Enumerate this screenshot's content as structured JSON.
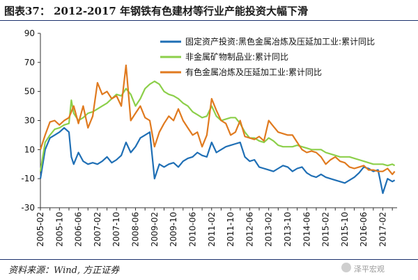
{
  "title": "图表37：  2012-2017 年钢铁有色建材等行业产能投资大幅下滑",
  "source": "资料来源：Wind, 方正证券",
  "watermark": "泽平宏观",
  "colors": {
    "rule": "#1a2f6b",
    "axis": "#333333",
    "series1": "#1f6fb5",
    "series2": "#8ccf4a",
    "series3": "#e07a1f"
  },
  "chart_data": {
    "type": "line",
    "ylim": [
      -30,
      90
    ],
    "yticks": [
      90,
      70,
      50,
      30,
      10,
      -10,
      -30
    ],
    "xlabels": [
      "2005-02",
      "2005-10",
      "2006-06",
      "2007-02",
      "2007-10",
      "2008-06",
      "2009-02",
      "2009-10",
      "2010-06",
      "2011-02",
      "2011-10",
      "2012-06",
      "2013-02",
      "2013-10",
      "2014-06",
      "2015-02",
      "2015-10",
      "2016-06",
      "2017-02"
    ],
    "legend_position": "top-right",
    "grid": false,
    "series": [
      {
        "name": "固定资产投资:黑色金属冶炼及压延加工业:累计同比",
        "color": "#1f6fb5",
        "points": [
          [
            "2005-02",
            -10
          ],
          [
            "2005-04",
            10
          ],
          [
            "2005-06",
            18
          ],
          [
            "2005-08",
            20
          ],
          [
            "2005-10",
            22
          ],
          [
            "2005-12",
            25
          ],
          [
            "2006-02",
            22
          ],
          [
            "2006-03",
            5
          ],
          [
            "2006-04",
            0
          ],
          [
            "2006-06",
            8
          ],
          [
            "2006-08",
            2
          ],
          [
            "2006-10",
            0
          ],
          [
            "2006-12",
            1
          ],
          [
            "2007-02",
            0
          ],
          [
            "2007-04",
            2
          ],
          [
            "2007-06",
            5
          ],
          [
            "2007-08",
            1
          ],
          [
            "2007-10",
            3
          ],
          [
            "2007-12",
            6
          ],
          [
            "2008-02",
            15
          ],
          [
            "2008-04",
            8
          ],
          [
            "2008-06",
            12
          ],
          [
            "2008-08",
            18
          ],
          [
            "2008-10",
            20
          ],
          [
            "2008-12",
            22
          ],
          [
            "2009-02",
            -10
          ],
          [
            "2009-04",
            0
          ],
          [
            "2009-06",
            -2
          ],
          [
            "2009-08",
            0
          ],
          [
            "2009-10",
            1
          ],
          [
            "2009-12",
            -2
          ],
          [
            "2010-02",
            2
          ],
          [
            "2010-04",
            4
          ],
          [
            "2010-06",
            5
          ],
          [
            "2010-08",
            8
          ],
          [
            "2010-10",
            6
          ],
          [
            "2010-12",
            5
          ],
          [
            "2011-02",
            15
          ],
          [
            "2011-04",
            8
          ],
          [
            "2011-06",
            10
          ],
          [
            "2011-08",
            12
          ],
          [
            "2011-10",
            13
          ],
          [
            "2011-12",
            14
          ],
          [
            "2012-02",
            15
          ],
          [
            "2012-04",
            5
          ],
          [
            "2012-06",
            2
          ],
          [
            "2012-08",
            3
          ],
          [
            "2012-10",
            -2
          ],
          [
            "2012-12",
            -3
          ],
          [
            "2013-02",
            -4
          ],
          [
            "2013-04",
            -5
          ],
          [
            "2013-06",
            -3
          ],
          [
            "2013-08",
            -1
          ],
          [
            "2013-10",
            -2
          ],
          [
            "2013-12",
            -5
          ],
          [
            "2014-02",
            -3
          ],
          [
            "2014-04",
            -2
          ],
          [
            "2014-06",
            -6
          ],
          [
            "2014-08",
            -8
          ],
          [
            "2014-10",
            -9
          ],
          [
            "2014-12",
            -7
          ],
          [
            "2015-02",
            -9
          ],
          [
            "2015-04",
            -10
          ],
          [
            "2015-06",
            -11
          ],
          [
            "2015-08",
            -12
          ],
          [
            "2015-10",
            -13
          ],
          [
            "2015-12",
            -11
          ],
          [
            "2016-02",
            -9
          ],
          [
            "2016-04",
            -6
          ],
          [
            "2016-06",
            -2
          ],
          [
            "2016-08",
            -3
          ],
          [
            "2016-10",
            -5
          ],
          [
            "2016-12",
            -4
          ],
          [
            "2017-02",
            -20
          ],
          [
            "2017-04",
            -10
          ],
          [
            "2017-06",
            -12
          ],
          [
            "2017-07",
            -11
          ]
        ]
      },
      {
        "name": "非金属矿物制品业:累计同比",
        "color": "#8ccf4a",
        "points": [
          [
            "2005-02",
            -5
          ],
          [
            "2005-04",
            15
          ],
          [
            "2005-06",
            20
          ],
          [
            "2005-08",
            24
          ],
          [
            "2005-10",
            25
          ],
          [
            "2005-12",
            27
          ],
          [
            "2006-02",
            28
          ],
          [
            "2006-03",
            44
          ],
          [
            "2006-04",
            35
          ],
          [
            "2006-06",
            30
          ],
          [
            "2006-08",
            32
          ],
          [
            "2006-10",
            35
          ],
          [
            "2006-12",
            36
          ],
          [
            "2007-02",
            38
          ],
          [
            "2007-04",
            40
          ],
          [
            "2007-06",
            42
          ],
          [
            "2007-08",
            45
          ],
          [
            "2007-10",
            48
          ],
          [
            "2007-12",
            47
          ],
          [
            "2008-02",
            52
          ],
          [
            "2008-04",
            48
          ],
          [
            "2008-06",
            40
          ],
          [
            "2008-08",
            45
          ],
          [
            "2008-10",
            52
          ],
          [
            "2008-12",
            55
          ],
          [
            "2009-02",
            57
          ],
          [
            "2009-04",
            55
          ],
          [
            "2009-06",
            50
          ],
          [
            "2009-08",
            48
          ],
          [
            "2009-10",
            47
          ],
          [
            "2009-12",
            45
          ],
          [
            "2010-02",
            42
          ],
          [
            "2010-04",
            40
          ],
          [
            "2010-06",
            36
          ],
          [
            "2010-08",
            34
          ],
          [
            "2010-10",
            32
          ],
          [
            "2010-12",
            33
          ],
          [
            "2011-02",
            40
          ],
          [
            "2011-04",
            33
          ],
          [
            "2011-06",
            30
          ],
          [
            "2011-08",
            31
          ],
          [
            "2011-10",
            32
          ],
          [
            "2011-12",
            32
          ],
          [
            "2012-02",
            28
          ],
          [
            "2012-04",
            22
          ],
          [
            "2012-06",
            18
          ],
          [
            "2012-08",
            18
          ],
          [
            "2012-10",
            16
          ],
          [
            "2012-12",
            15
          ],
          [
            "2013-02",
            18
          ],
          [
            "2013-04",
            16
          ],
          [
            "2013-06",
            13
          ],
          [
            "2013-08",
            12
          ],
          [
            "2013-10",
            12
          ],
          [
            "2013-12",
            12
          ],
          [
            "2014-02",
            13
          ],
          [
            "2014-04",
            12
          ],
          [
            "2014-06",
            11
          ],
          [
            "2014-08",
            10
          ],
          [
            "2014-10",
            10
          ],
          [
            "2014-12",
            10
          ],
          [
            "2015-02",
            8
          ],
          [
            "2015-04",
            7
          ],
          [
            "2015-06",
            6
          ],
          [
            "2015-08",
            5
          ],
          [
            "2015-10",
            5
          ],
          [
            "2015-12",
            5
          ],
          [
            "2016-02",
            4
          ],
          [
            "2016-04",
            3
          ],
          [
            "2016-06",
            2
          ],
          [
            "2016-08",
            1
          ],
          [
            "2016-10",
            0
          ],
          [
            "2016-12",
            0
          ],
          [
            "2017-02",
            0
          ],
          [
            "2017-04",
            -1
          ],
          [
            "2017-06",
            0
          ],
          [
            "2017-07",
            -1
          ]
        ]
      },
      {
        "name": "有色金属冶炼及压延加工业:累计同比",
        "color": "#e07a1f",
        "points": [
          [
            "2005-02",
            10
          ],
          [
            "2005-04",
            20
          ],
          [
            "2005-06",
            29
          ],
          [
            "2005-08",
            30
          ],
          [
            "2005-10",
            27
          ],
          [
            "2005-12",
            30
          ],
          [
            "2006-02",
            32
          ],
          [
            "2006-03",
            36
          ],
          [
            "2006-04",
            40
          ],
          [
            "2006-06",
            28
          ],
          [
            "2006-08",
            40
          ],
          [
            "2006-10",
            25
          ],
          [
            "2006-12",
            33
          ],
          [
            "2007-02",
            56
          ],
          [
            "2007-04",
            48
          ],
          [
            "2007-06",
            50
          ],
          [
            "2007-08",
            45
          ],
          [
            "2007-10",
            47
          ],
          [
            "2007-12",
            40
          ],
          [
            "2008-02",
            68
          ],
          [
            "2008-04",
            30
          ],
          [
            "2008-06",
            35
          ],
          [
            "2008-08",
            40
          ],
          [
            "2008-10",
            32
          ],
          [
            "2008-12",
            30
          ],
          [
            "2009-02",
            12
          ],
          [
            "2009-04",
            22
          ],
          [
            "2009-06",
            28
          ],
          [
            "2009-08",
            33
          ],
          [
            "2009-10",
            30
          ],
          [
            "2009-12",
            38
          ],
          [
            "2010-02",
            30
          ],
          [
            "2010-04",
            25
          ],
          [
            "2010-06",
            20
          ],
          [
            "2010-08",
            22
          ],
          [
            "2010-10",
            12
          ],
          [
            "2010-12",
            20
          ],
          [
            "2011-02",
            45
          ],
          [
            "2011-04",
            37
          ],
          [
            "2011-06",
            30
          ],
          [
            "2011-08",
            28
          ],
          [
            "2011-10",
            20
          ],
          [
            "2011-12",
            22
          ],
          [
            "2012-02",
            30
          ],
          [
            "2012-04",
            19
          ],
          [
            "2012-06",
            18
          ],
          [
            "2012-08",
            17
          ],
          [
            "2012-10",
            19
          ],
          [
            "2012-12",
            16
          ],
          [
            "2013-02",
            30
          ],
          [
            "2013-04",
            26
          ],
          [
            "2013-06",
            22
          ],
          [
            "2013-08",
            21
          ],
          [
            "2013-10",
            20
          ],
          [
            "2013-12",
            20
          ],
          [
            "2014-02",
            15
          ],
          [
            "2014-04",
            10
          ],
          [
            "2014-06",
            8
          ],
          [
            "2014-08",
            9
          ],
          [
            "2014-10",
            8
          ],
          [
            "2014-12",
            5
          ],
          [
            "2015-02",
            0
          ],
          [
            "2015-04",
            3
          ],
          [
            "2015-06",
            5
          ],
          [
            "2015-08",
            2
          ],
          [
            "2015-10",
            1
          ],
          [
            "2015-12",
            -2
          ],
          [
            "2016-02",
            -3
          ],
          [
            "2016-04",
            -2
          ],
          [
            "2016-06",
            -1
          ],
          [
            "2016-08",
            -4
          ],
          [
            "2016-10",
            -4
          ],
          [
            "2016-12",
            -5
          ],
          [
            "2017-02",
            -5
          ],
          [
            "2017-04",
            -3
          ],
          [
            "2017-06",
            -7
          ],
          [
            "2017-07",
            -5
          ]
        ]
      }
    ]
  }
}
